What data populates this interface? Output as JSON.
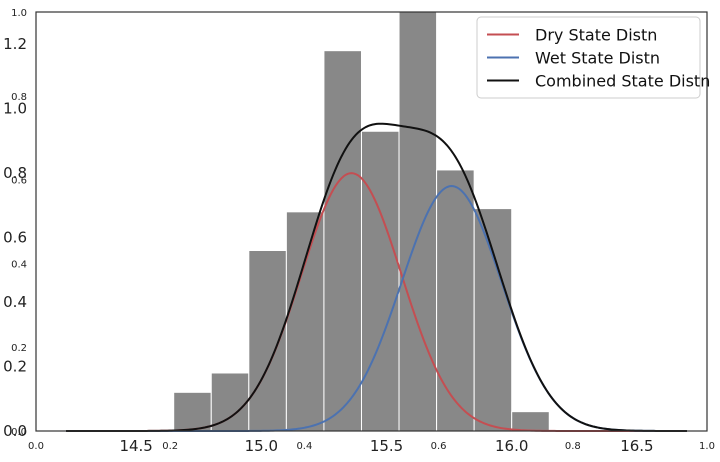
{
  "chart_data": {
    "type": "histogram-with-density-lines",
    "title": "",
    "xlabel": "",
    "ylabel": "",
    "grid": false,
    "legend_placement": "top-right",
    "x_range": [
      14.1,
      16.78
    ],
    "y_range": [
      0,
      1.3
    ],
    "x_ticks": [
      14.5,
      15.0,
      15.5,
      16.0,
      16.5
    ],
    "x_tick_labels": [
      "14.5",
      "15.0",
      "15.5",
      "16.0",
      "16.5"
    ],
    "y_ticks": [
      0.0,
      0.2,
      0.4,
      0.6,
      0.8,
      1.0,
      1.2
    ],
    "y_tick_labels": [
      "0.0",
      "0.2",
      "0.4",
      "0.6",
      "0.8",
      "1.0",
      "1.2"
    ],
    "overlay_axis": {
      "ticks": [
        0.0,
        0.2,
        0.4,
        0.6,
        0.8,
        1.0
      ],
      "x_tick_labels": [
        "0.0",
        "0.2",
        "0.4",
        "0.6",
        "0.8",
        "1.0"
      ],
      "y_tick_labels": [
        "0.0",
        "0.2",
        "0.4",
        "0.6",
        "0.8",
        "1.0"
      ]
    },
    "histogram": {
      "color": "#888888",
      "bin_edges": [
        14.65,
        14.8,
        14.95,
        15.1,
        15.25,
        15.4,
        15.55,
        15.7,
        15.85,
        16.0,
        16.15,
        16.3
      ],
      "heights": [
        0.12,
        0.18,
        0.56,
        0.68,
        1.18,
        0.93,
        1.3,
        0.81,
        0.69,
        0.06,
        0.0
      ]
    },
    "series": [
      {
        "name": "Dry State Distn",
        "color": "#c44e52",
        "kind": "gaussian",
        "mean": 15.36,
        "sd": 0.2,
        "peak": 0.8
      },
      {
        "name": "Wet State Distn",
        "color": "#4c72b0",
        "kind": "gaussian",
        "mean": 15.76,
        "sd": 0.2,
        "peak": 0.76
      },
      {
        "name": "Combined State Distn",
        "color": "#111111",
        "kind": "mixture",
        "x_min": 14.22,
        "x_max": 16.7
      }
    ]
  }
}
